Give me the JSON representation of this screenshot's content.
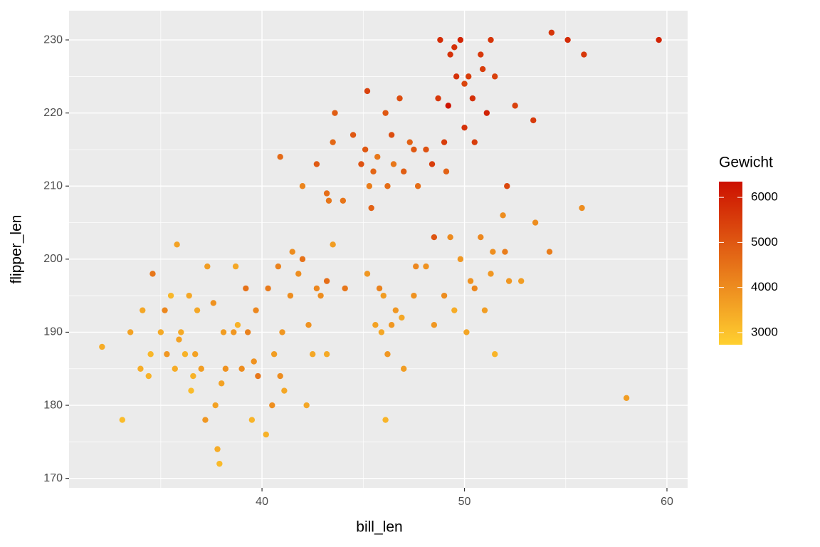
{
  "chart_data": {
    "type": "scatter",
    "xlabel": "bill_len",
    "ylabel": "flipper_len",
    "xlim": [
      30.47,
      61.02
    ],
    "xticks": [
      40,
      50,
      60
    ],
    "ylim": [
      168.7,
      234.0
    ],
    "yticks": [
      170,
      180,
      190,
      200,
      210,
      220,
      230
    ],
    "grid": true,
    "colorbar": {
      "title": "Gewicht",
      "lim": [
        2730,
        6350
      ],
      "ticks": [
        3000,
        4000,
        5000,
        6000
      ],
      "low": "#FFD030",
      "high": "#CC1000"
    },
    "x": [
      32.1,
      33.1,
      33.5,
      34.0,
      34.1,
      34.4,
      34.5,
      34.6,
      35.0,
      35.2,
      35.3,
      35.5,
      35.7,
      35.8,
      35.9,
      36.0,
      36.2,
      36.4,
      36.5,
      36.6,
      36.7,
      36.8,
      37.0,
      37.2,
      37.3,
      37.6,
      37.7,
      37.8,
      37.9,
      38.0,
      38.1,
      38.2,
      38.6,
      38.7,
      38.8,
      39.0,
      39.2,
      39.3,
      39.5,
      39.6,
      39.7,
      39.8,
      40.2,
      40.3,
      40.5,
      40.6,
      40.8,
      40.9,
      41.0,
      41.1,
      41.4,
      41.5,
      41.8,
      42.0,
      42.2,
      42.3,
      42.5,
      42.7,
      42.9,
      43.2,
      43.2,
      43.5,
      44.1,
      45.6,
      45.8,
      46.0,
      46.2,
      46.4,
      46.1,
      46.9,
      47.0,
      47.5,
      47.6,
      48.1,
      48.5,
      49.0,
      49.3,
      49.5,
      49.8,
      50.1,
      50.3,
      50.5,
      50.8,
      51.0,
      51.3,
      51.4,
      51.5,
      51.9,
      52.0,
      52.2,
      52.8,
      53.5,
      54.2,
      55.8,
      58.0,
      45.2,
      45.9,
      46.6,
      40.9,
      42.0,
      42.7,
      43.2,
      43.3,
      43.5,
      43.6,
      44.0,
      44.5,
      44.9,
      45.1,
      45.2,
      45.3,
      45.5,
      45.4,
      45.7,
      46.1,
      46.2,
      46.4,
      46.5,
      46.8,
      47.0,
      47.3,
      47.5,
      47.7,
      48.1,
      48.4,
      48.5,
      48.7,
      48.8,
      49.0,
      49.1,
      49.2,
      49.3,
      49.5,
      49.6,
      49.8,
      50.0,
      50.0,
      50.2,
      50.4,
      50.5,
      50.8,
      50.9,
      51.1,
      51.3,
      51.5,
      52.1,
      52.5,
      53.4,
      54.3,
      55.1,
      55.9,
      59.6
    ],
    "values": [
      188,
      178,
      190,
      185,
      193,
      184,
      187,
      198,
      190,
      193,
      187,
      195,
      185,
      202,
      189,
      190,
      187,
      195,
      182,
      184,
      187,
      193,
      185,
      178,
      199,
      194,
      180,
      174,
      172,
      183,
      190,
      185,
      190,
      199,
      191,
      185,
      196,
      190,
      178,
      186,
      193,
      184,
      176,
      196,
      180,
      187,
      199,
      184,
      190,
      182,
      195,
      201,
      198,
      200,
      180,
      191,
      187,
      196,
      195,
      197,
      187,
      202,
      196,
      191,
      196,
      195,
      187,
      191,
      178,
      192,
      185,
      195,
      199,
      199,
      191,
      195,
      203,
      193,
      200,
      190,
      197,
      196,
      203,
      193,
      198,
      201,
      187,
      206,
      201,
      197,
      197,
      205,
      201,
      207,
      181,
      198,
      190,
      193,
      214,
      210,
      213,
      209,
      208,
      216,
      220,
      208,
      217,
      213,
      215,
      223,
      210,
      212,
      207,
      214,
      220,
      210,
      217,
      213,
      222,
      212,
      216,
      215,
      210,
      215,
      213,
      203,
      222,
      230,
      216,
      212,
      221,
      228,
      229,
      225,
      230,
      224,
      218,
      225,
      222,
      216,
      228,
      226,
      220,
      230,
      225,
      210,
      221,
      219,
      231,
      230,
      228,
      230
    ],
    "color_values": [
      3400,
      3100,
      3600,
      3400,
      3500,
      3300,
      3200,
      4400,
      3450,
      4100,
      3800,
      3200,
      3400,
      3600,
      3600,
      3450,
      3300,
      3500,
      3100,
      3300,
      3600,
      3500,
      3700,
      3800,
      3700,
      3900,
      3600,
      3400,
      3150,
      3600,
      3700,
      3900,
      3800,
      3500,
      3300,
      4000,
      4500,
      4200,
      3250,
      3900,
      4100,
      4400,
      3300,
      4350,
      3950,
      3700,
      4200,
      4000,
      3800,
      3500,
      4000,
      4000,
      4000,
      4500,
      3500,
      3900,
      3500,
      4100,
      4000,
      4600,
      3450,
      3700,
      4400,
      3600,
      4200,
      3700,
      3800,
      3800,
      3250,
      3500,
      3700,
      3900,
      4100,
      3900,
      3800,
      4000,
      4050,
      3400,
      3800,
      3550,
      3900,
      4100,
      4100,
      3700,
      3800,
      3950,
      3250,
      4000,
      4300,
      3800,
      3700,
      4000,
      4300,
      4000,
      3700,
      3800,
      3500,
      3800,
      4650,
      4150,
      4950,
      4600,
      4400,
      4700,
      4900,
      4450,
      5000,
      5100,
      5000,
      5400,
      4300,
      4750,
      4800,
      4400,
      5000,
      4600,
      5200,
      4400,
      5200,
      4900,
      4800,
      5000,
      4600,
      5100,
      5500,
      5050,
      5600,
      5800,
      5500,
      4800,
      6300,
      5700,
      5750,
      5700,
      5950,
      5350,
      5700,
      5500,
      5750,
      5500,
      5600,
      5500,
      6000,
      5650,
      5400,
      5300,
      5450,
      5550,
      5650,
      5850,
      5600,
      6000
    ]
  }
}
